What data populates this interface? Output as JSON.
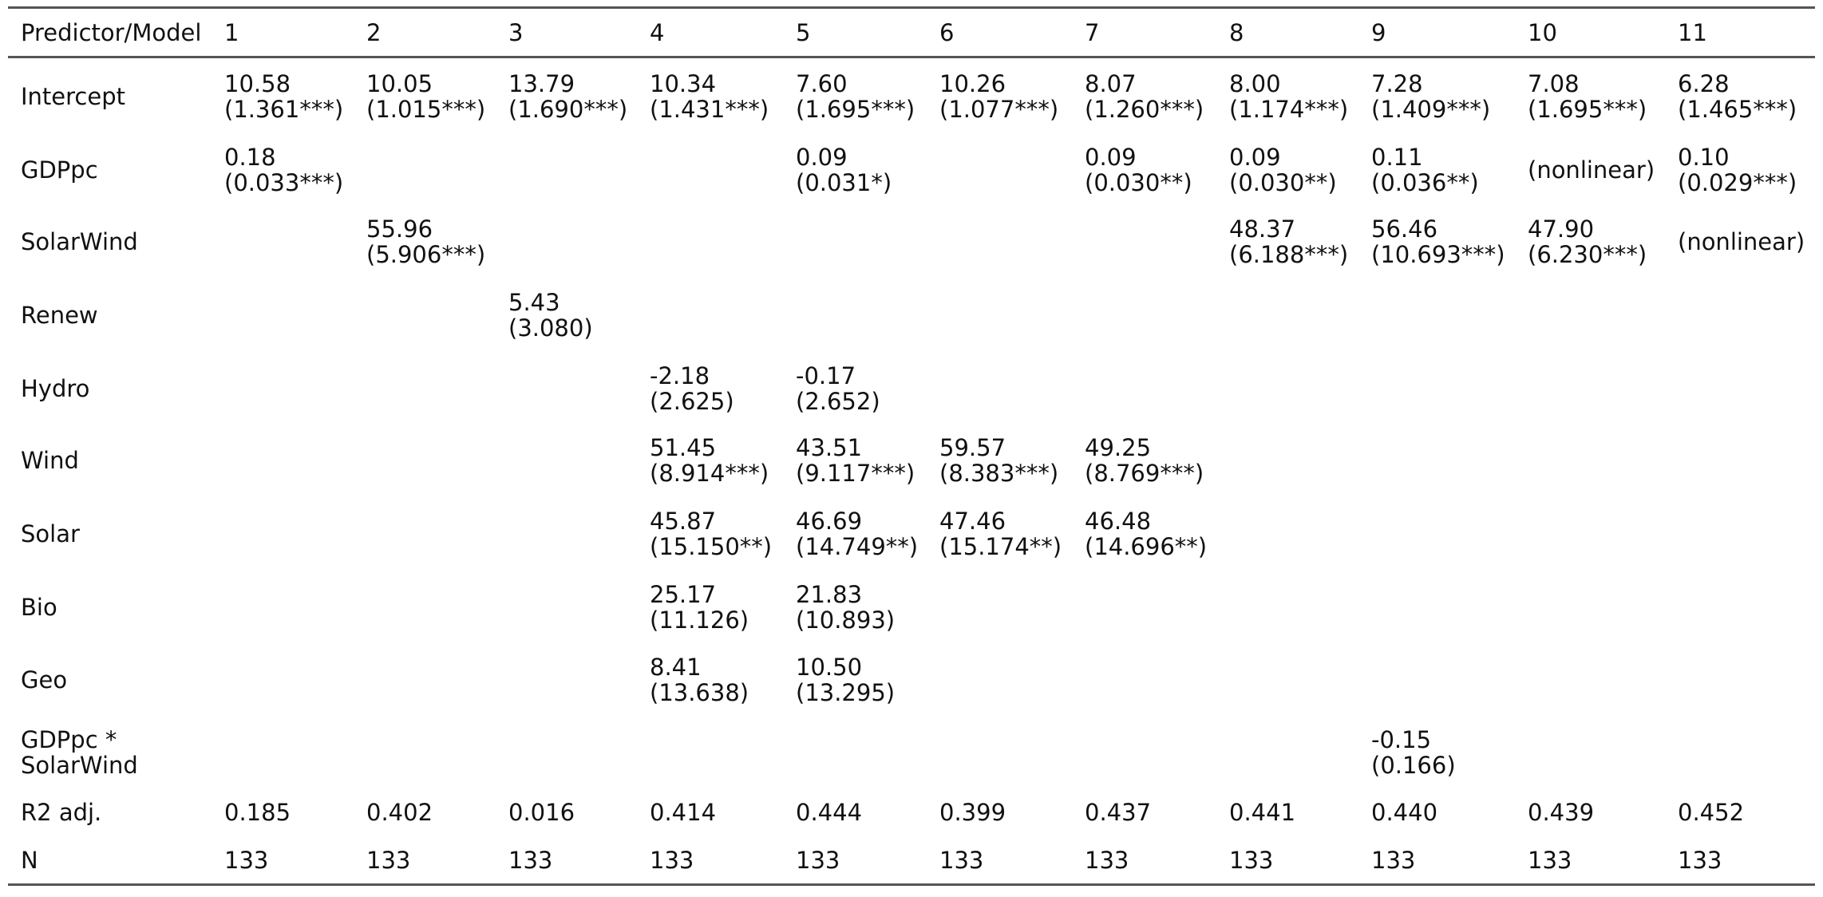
{
  "table": {
    "header": [
      "Predictor/Model",
      "1",
      "2",
      "3",
      "4",
      "5",
      "6",
      "7",
      "8",
      "9",
      "10",
      "11"
    ],
    "rows": [
      {
        "label": "Intercept",
        "cells": [
          [
            "10.58",
            "(1.361***)"
          ],
          [
            "10.05",
            "(1.015***)"
          ],
          [
            "13.79",
            "(1.690***)"
          ],
          [
            "10.34",
            "(1.431***)"
          ],
          [
            "7.60",
            "(1.695***)"
          ],
          [
            "10.26",
            "(1.077***)"
          ],
          [
            "8.07",
            "(1.260***)"
          ],
          [
            "8.00",
            "(1.174***)"
          ],
          [
            "7.28",
            "(1.409***)"
          ],
          [
            "7.08",
            "(1.695***)"
          ],
          [
            "6.28",
            "(1.465***)"
          ]
        ]
      },
      {
        "label": "GDPpc",
        "cells": [
          [
            "0.18",
            "(0.033***)"
          ],
          null,
          null,
          null,
          [
            "0.09",
            "(0.031*)"
          ],
          null,
          [
            "0.09",
            "(0.030**)"
          ],
          [
            "0.09",
            "(0.030**)"
          ],
          [
            "0.11",
            "(0.036**)"
          ],
          [
            "(nonlinear)"
          ],
          [
            "0.10",
            "(0.029***)"
          ]
        ]
      },
      {
        "label": "SolarWind",
        "cells": [
          null,
          [
            "55.96",
            "(5.906***)"
          ],
          null,
          null,
          null,
          null,
          null,
          [
            "48.37",
            "(6.188***)"
          ],
          [
            "56.46",
            "(10.693***)"
          ],
          [
            "47.90",
            "(6.230***)"
          ],
          [
            "(nonlinear)"
          ]
        ]
      },
      {
        "label": "Renew",
        "cells": [
          null,
          null,
          [
            "5.43",
            "(3.080)"
          ],
          null,
          null,
          null,
          null,
          null,
          null,
          null,
          null
        ]
      },
      {
        "label": "Hydro",
        "cells": [
          null,
          null,
          null,
          [
            "-2.18",
            "(2.625)"
          ],
          [
            "-0.17",
            "(2.652)"
          ],
          null,
          null,
          null,
          null,
          null,
          null
        ]
      },
      {
        "label": "Wind",
        "cells": [
          null,
          null,
          null,
          [
            "51.45",
            "(8.914***)"
          ],
          [
            "43.51",
            "(9.117***)"
          ],
          [
            "59.57",
            "(8.383***)"
          ],
          [
            "49.25",
            "(8.769***)"
          ],
          null,
          null,
          null,
          null
        ]
      },
      {
        "label": "Solar",
        "cells": [
          null,
          null,
          null,
          [
            "45.87",
            "(15.150**)"
          ],
          [
            "46.69",
            "(14.749**)"
          ],
          [
            "47.46",
            "(15.174**)"
          ],
          [
            "46.48",
            "(14.696**)"
          ],
          null,
          null,
          null,
          null
        ]
      },
      {
        "label": "Bio",
        "cells": [
          null,
          null,
          null,
          [
            "25.17",
            "(11.126)"
          ],
          [
            "21.83",
            "(10.893)"
          ],
          null,
          null,
          null,
          null,
          null,
          null
        ]
      },
      {
        "label": "Geo",
        "cells": [
          null,
          null,
          null,
          [
            "8.41",
            "(13.638)"
          ],
          [
            "10.50",
            "(13.295)"
          ],
          null,
          null,
          null,
          null,
          null,
          null
        ]
      },
      {
        "label": [
          "GDPpc *",
          "SolarWind"
        ],
        "cells": [
          null,
          null,
          null,
          null,
          null,
          null,
          null,
          null,
          [
            "-0.15",
            "(0.166)"
          ],
          null,
          null
        ]
      },
      {
        "label": "R2 adj.",
        "cells": [
          [
            "0.185"
          ],
          [
            "0.402"
          ],
          [
            "0.016"
          ],
          [
            "0.414"
          ],
          [
            "0.444"
          ],
          [
            "0.399"
          ],
          [
            "0.437"
          ],
          [
            "0.441"
          ],
          [
            "0.440"
          ],
          [
            "0.439"
          ],
          [
            "0.452"
          ]
        ]
      },
      {
        "label": "N",
        "cells": [
          [
            "133"
          ],
          [
            "133"
          ],
          [
            "133"
          ],
          [
            "133"
          ],
          [
            "133"
          ],
          [
            "133"
          ],
          [
            "133"
          ],
          [
            "133"
          ],
          [
            "133"
          ],
          [
            "133"
          ],
          [
            "133"
          ]
        ]
      }
    ]
  }
}
